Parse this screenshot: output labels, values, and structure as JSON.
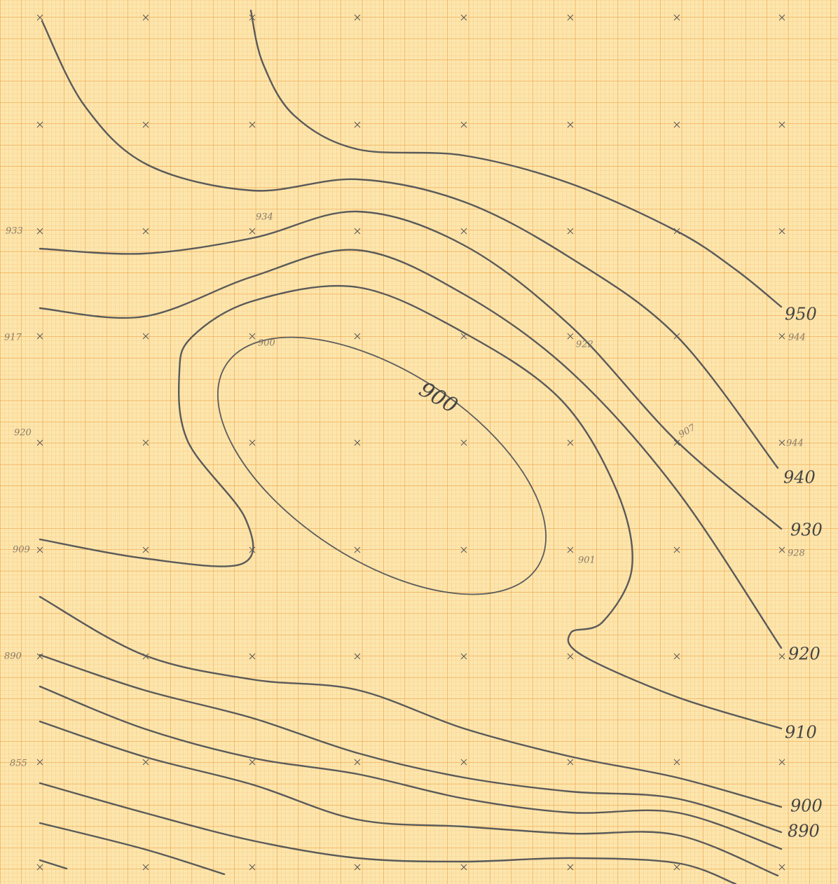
{
  "contour_labels": [
    "950",
    "940",
    "930",
    "920",
    "910",
    "900",
    "890"
  ],
  "center_label": "900",
  "spot_heights": [
    "933",
    "934",
    "917",
    "920",
    "909",
    "890",
    "855",
    "944",
    "944",
    "928",
    "900",
    "901",
    "922",
    "907"
  ]
}
